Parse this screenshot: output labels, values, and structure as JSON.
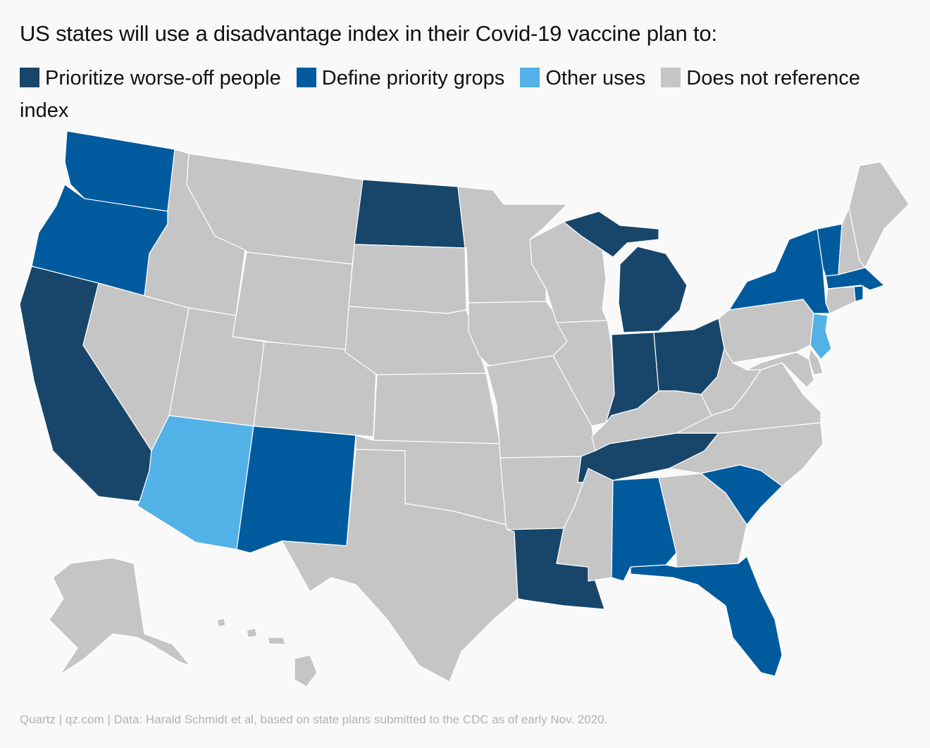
{
  "title": "US states will use a disadvantage index in their Covid-19 vaccine plan to:",
  "legend": [
    {
      "key": "prioritize",
      "label": "Prioritize worse-off people",
      "color": "#17466a"
    },
    {
      "key": "define",
      "label": "Define priority grops",
      "color": "#005b9e"
    },
    {
      "key": "other",
      "label": "Other uses",
      "color": "#52b1e6"
    },
    {
      "key": "none",
      "label": "Does not reference index",
      "color": "#c5c5c5"
    }
  ],
  "states": {
    "WA": "define",
    "OR": "define",
    "CA": "prioritize",
    "NV": "none",
    "ID": "none",
    "MT": "none",
    "WY": "none",
    "UT": "none",
    "CO": "none",
    "AZ": "other",
    "NM": "define",
    "ND": "prioritize",
    "SD": "none",
    "NE": "none",
    "KS": "none",
    "OK": "none",
    "TX": "none",
    "MN": "none",
    "IA": "none",
    "MO": "none",
    "AR": "none",
    "LA": "prioritize",
    "WI": "none",
    "IL": "none",
    "MI": "prioritize",
    "IN": "prioritize",
    "OH": "prioritize",
    "KY": "none",
    "TN": "prioritize",
    "MS": "none",
    "AL": "define",
    "GA": "none",
    "FL": "define",
    "SC": "define",
    "NC": "none",
    "VA": "none",
    "WV": "none",
    "PA": "none",
    "NY": "define",
    "VT": "define",
    "NH": "none",
    "ME": "none",
    "MA": "define",
    "RI": "define",
    "CT": "none",
    "NJ": "other",
    "DE": "none",
    "MD": "none",
    "AK": "none",
    "HI": "none"
  },
  "footer": "Quartz | qz.com | Data: Harald Schmidt et al, based on state plans submitted to the CDC as of early Nov. 2020."
}
